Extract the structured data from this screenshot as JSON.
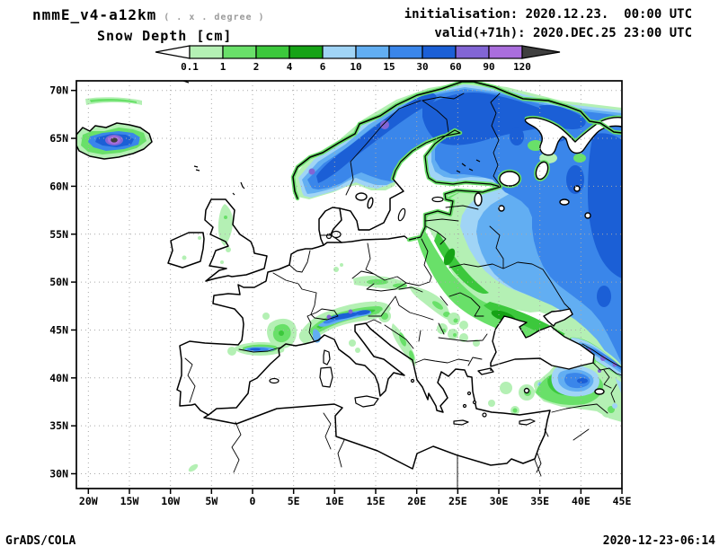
{
  "header": {
    "title": "nmmE_v4-a12km",
    "title_note": "( . x . degree )",
    "field_label": "Snow Depth [cm]",
    "init_line": "initialisation: 2020.12.23.  00:00 UTC",
    "valid_line": "valid(+71h): 2020.DEC.25 23:00 UTC"
  },
  "colorbar": {
    "levels": [
      "0.1",
      "1",
      "2",
      "4",
      "6",
      "10",
      "15",
      "30",
      "60",
      "90",
      "120"
    ],
    "segment_colors": [
      "#b4f0b4",
      "#69e069",
      "#3cc83c",
      "#16a316",
      "#a0d4f6",
      "#62aef2",
      "#3a86ea",
      "#1b5fd6",
      "#8265d5",
      "#aa6edd"
    ],
    "below_color": "#ffffff",
    "above_color": "#3f3f3f"
  },
  "axes": {
    "lat_labels": [
      "70N",
      "65N",
      "60N",
      "55N",
      "50N",
      "45N",
      "40N",
      "35N",
      "30N"
    ],
    "lat_values": [
      70,
      65,
      60,
      55,
      50,
      45,
      40,
      35,
      30
    ],
    "lon_labels": [
      "20W",
      "15W",
      "10W",
      "5W",
      "0",
      "5E",
      "10E",
      "15E",
      "20E",
      "25E",
      "30E",
      "35E",
      "40E",
      "45E"
    ],
    "lon_values": [
      -20,
      -15,
      -10,
      -5,
      0,
      5,
      10,
      15,
      20,
      25,
      30,
      35,
      40,
      45
    ]
  },
  "footer": {
    "left": "GrADS/COLA",
    "right": "2020-12-23-06:14"
  }
}
